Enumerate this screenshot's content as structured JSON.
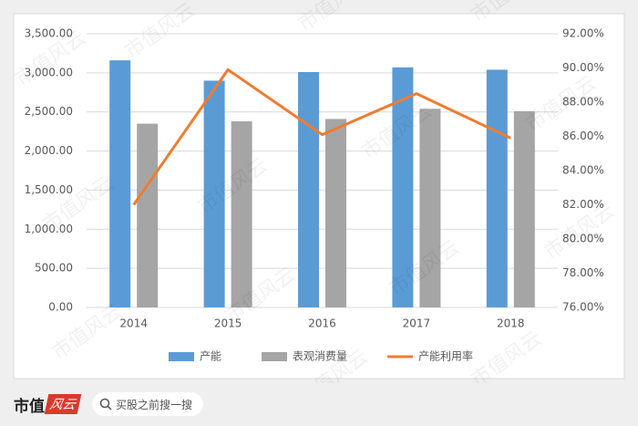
{
  "chart_data": {
    "type": "bar",
    "categories": [
      "2014",
      "2015",
      "2016",
      "2017",
      "2018"
    ],
    "series": [
      {
        "name": "产能",
        "color": "#5b9bd5",
        "values": [
          3160,
          2900,
          3010,
          3070,
          3040
        ]
      },
      {
        "name": "表观消费量",
        "color": "#a5a5a5",
        "values": [
          2350,
          2380,
          2410,
          2540,
          2510
        ]
      },
      {
        "name": "产能利用率",
        "color": "#ed7d31",
        "type": "line",
        "axis": "y2",
        "values": [
          82.0,
          89.9,
          86.1,
          88.5,
          85.9
        ]
      }
    ],
    "ylim": [
      0,
      3500
    ],
    "yticks": [
      {
        "value": 0,
        "label": "0.00"
      },
      {
        "value": 500,
        "label": "500.00"
      },
      {
        "value": 1000,
        "label": "1,000.00"
      },
      {
        "value": 1500,
        "label": "1,500.00"
      },
      {
        "value": 2000,
        "label": "2,000.00"
      },
      {
        "value": 2500,
        "label": "2,500.00"
      },
      {
        "value": 3000,
        "label": "3,000.00"
      },
      {
        "value": 3500,
        "label": "3,500.00"
      }
    ],
    "y2lim": [
      76,
      92
    ],
    "y2ticks": [
      {
        "value": 76,
        "label": "76.00%"
      },
      {
        "value": 78,
        "label": "78.00%"
      },
      {
        "value": 80,
        "label": "80.00%"
      },
      {
        "value": 82,
        "label": "82.00%"
      },
      {
        "value": 84,
        "label": "84.00%"
      },
      {
        "value": 86,
        "label": "86.00%"
      },
      {
        "value": 88,
        "label": "88.00%"
      },
      {
        "value": 90,
        "label": "90.00%"
      },
      {
        "value": 92,
        "label": "92.00%"
      }
    ],
    "grid": true,
    "legend": "bottom"
  },
  "watermark": "市值风云",
  "footer": {
    "brand_left": "市值",
    "brand_right": "风云",
    "search_placeholder": "买股之前搜一搜"
  }
}
